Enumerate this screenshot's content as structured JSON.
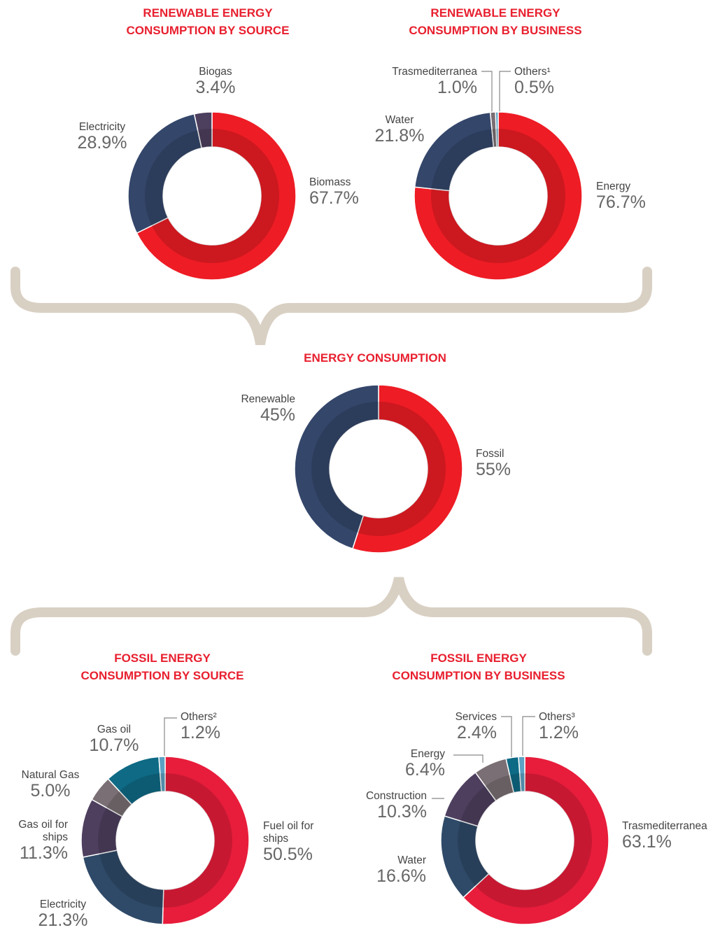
{
  "chart_data": [
    {
      "type": "pie",
      "title": "RENEWABLE ENERGY\nCONSUMPTION BY SOURCE",
      "categories": [
        "Biomass",
        "Electricity",
        "Biogas"
      ],
      "values": [
        67.7,
        28.9,
        3.4
      ],
      "value_labels": [
        "67.7%",
        "28.9%",
        "3.4%"
      ],
      "colors": [
        "#ee1c25",
        "#34466a",
        "#4d3f5e"
      ]
    },
    {
      "type": "pie",
      "title": "RENEWABLE ENERGY\nCONSUMPTION BY BUSINESS",
      "categories": [
        "Energy",
        "Water",
        "Trasmediterranea",
        "Others¹"
      ],
      "values": [
        76.7,
        21.8,
        1.0,
        0.5
      ],
      "value_labels": [
        "76.7%",
        "21.8%",
        "1.0%",
        "0.5%"
      ],
      "colors": [
        "#ee1c25",
        "#34466a",
        "#7a6f74",
        "#5ba2c4"
      ]
    },
    {
      "type": "pie",
      "title": "ENERGY CONSUMPTION",
      "categories": [
        "Fossil",
        "Renewable"
      ],
      "values": [
        55,
        45
      ],
      "value_labels": [
        "55%",
        "45%"
      ],
      "colors": [
        "#ee1c25",
        "#34466a"
      ]
    },
    {
      "type": "pie",
      "title": "FOSSIL ENERGY\nCONSUMPTION BY SOURCE",
      "categories": [
        "Fuel oil for\nships",
        "Electricity",
        "Gas oil for\nships",
        "Natural Gas",
        "Gas oil",
        "Others²"
      ],
      "values": [
        50.5,
        21.3,
        11.3,
        5.0,
        10.7,
        1.2
      ],
      "value_labels": [
        "50.5%",
        "21.3%",
        "11.3%",
        "5.0%",
        "10.7%",
        "1.2%"
      ],
      "colors": [
        "#e81d3b",
        "#2f4a68",
        "#4e3f5f",
        "#7a6f74",
        "#0e6a85",
        "#5ba2c4"
      ]
    },
    {
      "type": "pie",
      "title": "FOSSIL ENERGY\nCONSUMPTION BY BUSINESS",
      "categories": [
        "Trasmediterranea",
        "Water",
        "Construction",
        "Energy",
        "Services",
        "Others³"
      ],
      "values": [
        63.1,
        16.6,
        10.3,
        6.4,
        2.4,
        1.2
      ],
      "value_labels": [
        "63.1%",
        "16.6%",
        "10.3%",
        "6.4%",
        "2.4%",
        "1.2%"
      ],
      "colors": [
        "#e81d3b",
        "#2f4a68",
        "#4e3f5f",
        "#7a6f74",
        "#0e6a85",
        "#5ba2c4"
      ]
    }
  ]
}
